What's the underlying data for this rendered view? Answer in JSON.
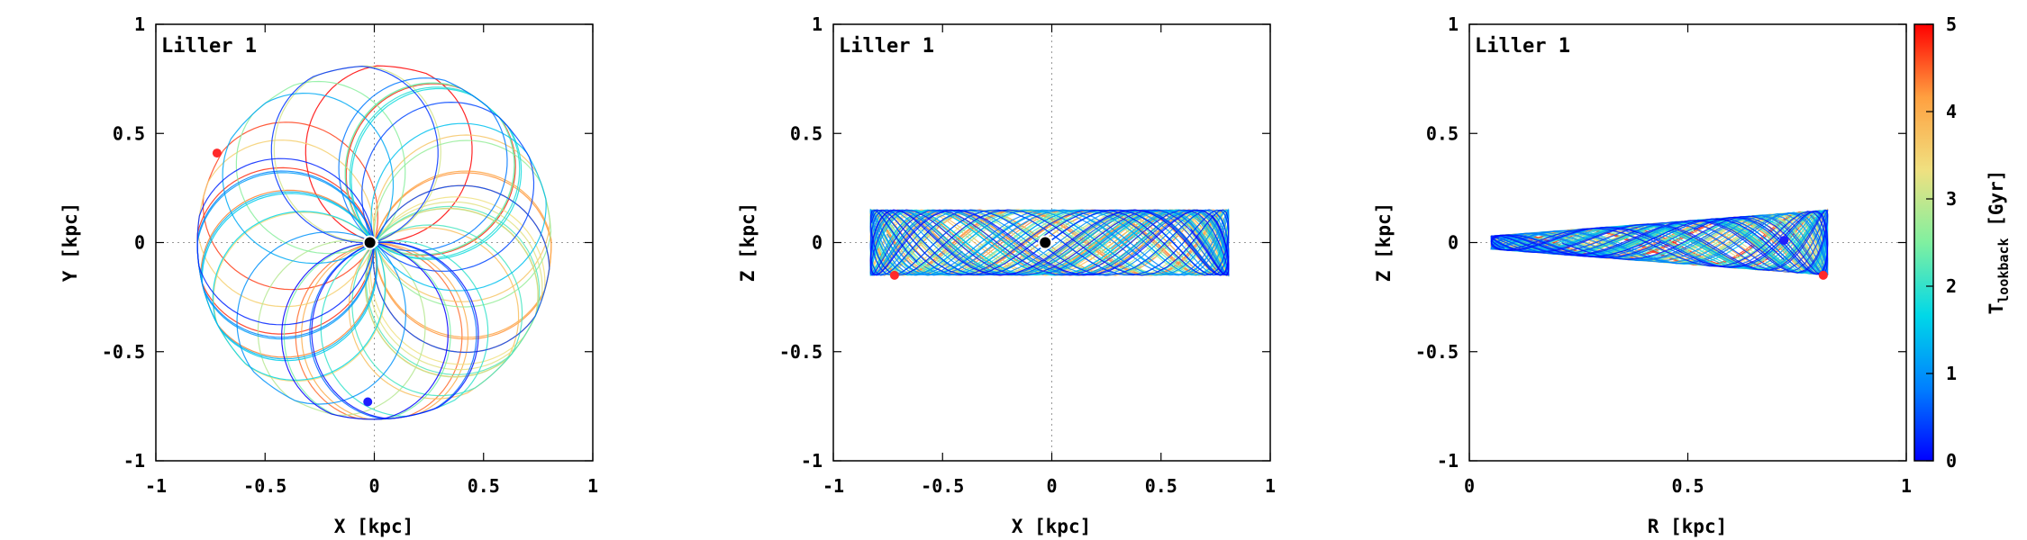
{
  "chart_data": [
    {
      "type": "line",
      "title": "Liller 1",
      "xlabel": "X [kpc]",
      "ylabel": "Y [kpc]",
      "xlim": [
        -1,
        1
      ],
      "ylim": [
        -1,
        1
      ],
      "xticks": [
        "-1",
        "-0.5",
        "0",
        "0.5",
        "1"
      ],
      "yticks": [
        "-1",
        "-0.5",
        "0",
        "0.5",
        "1"
      ],
      "grid_zero_lines": true,
      "orbit": {
        "projection": "XY",
        "r_min": 0.02,
        "r_max": 0.82,
        "z_max": 0.15
      },
      "markers": [
        {
          "name": "present",
          "x": -0.72,
          "y": 0.41,
          "color": "#ff2a2a"
        },
        {
          "name": "past",
          "x": -0.03,
          "y": -0.73,
          "color": "#1f1fff"
        },
        {
          "name": "center",
          "x": -0.02,
          "y": 0.0,
          "color": "#000000"
        }
      ]
    },
    {
      "type": "line",
      "title": "Liller 1",
      "xlabel": "X [kpc]",
      "ylabel": "Z [kpc]",
      "xlim": [
        -1,
        1
      ],
      "ylim": [
        -1,
        1
      ],
      "xticks": [
        "-1",
        "-0.5",
        "0",
        "0.5",
        "1"
      ],
      "yticks": [
        "-1",
        "-0.5",
        "0",
        "0.5",
        "1"
      ],
      "grid_zero_lines": true,
      "orbit": {
        "projection": "XZ",
        "x_range": [
          -0.83,
          0.81
        ],
        "z_range": [
          -0.15,
          0.15
        ]
      },
      "markers": [
        {
          "name": "present",
          "x": -0.72,
          "y": -0.15,
          "color": "#ff2a2a"
        },
        {
          "name": "center",
          "x": -0.03,
          "y": 0.0,
          "color": "#000000"
        }
      ]
    },
    {
      "type": "line",
      "title": "Liller 1",
      "xlabel": "R [kpc]",
      "ylabel": "Z [kpc]",
      "xlim": [
        0,
        1
      ],
      "ylim": [
        -1,
        1
      ],
      "xticks": [
        "0",
        "0.5",
        "1"
      ],
      "yticks": [
        "-1",
        "-0.5",
        "0",
        "0.5",
        "1"
      ],
      "grid_zero_lines": true,
      "orbit": {
        "projection": "RZ",
        "r_range": [
          0.05,
          0.82
        ],
        "z_at_rmin": 0.03,
        "z_at_rmax": 0.15
      },
      "markers": [
        {
          "name": "present",
          "x": 0.81,
          "y": -0.15,
          "color": "#ff2a2a"
        },
        {
          "name": "past",
          "x": 0.72,
          "y": 0.01,
          "color": "#1f1fff"
        }
      ]
    }
  ],
  "colorbar": {
    "label": "T",
    "label_subscript": "lookback",
    "label_unit": " [Gyr]",
    "range": [
      0,
      5
    ],
    "ticks": [
      "0",
      "1",
      "2",
      "3",
      "4",
      "5"
    ],
    "colormap": [
      "#0000ff",
      "#0080ff",
      "#00d8e8",
      "#80f0a0",
      "#f0e080",
      "#ffa040",
      "#ff0000"
    ]
  }
}
